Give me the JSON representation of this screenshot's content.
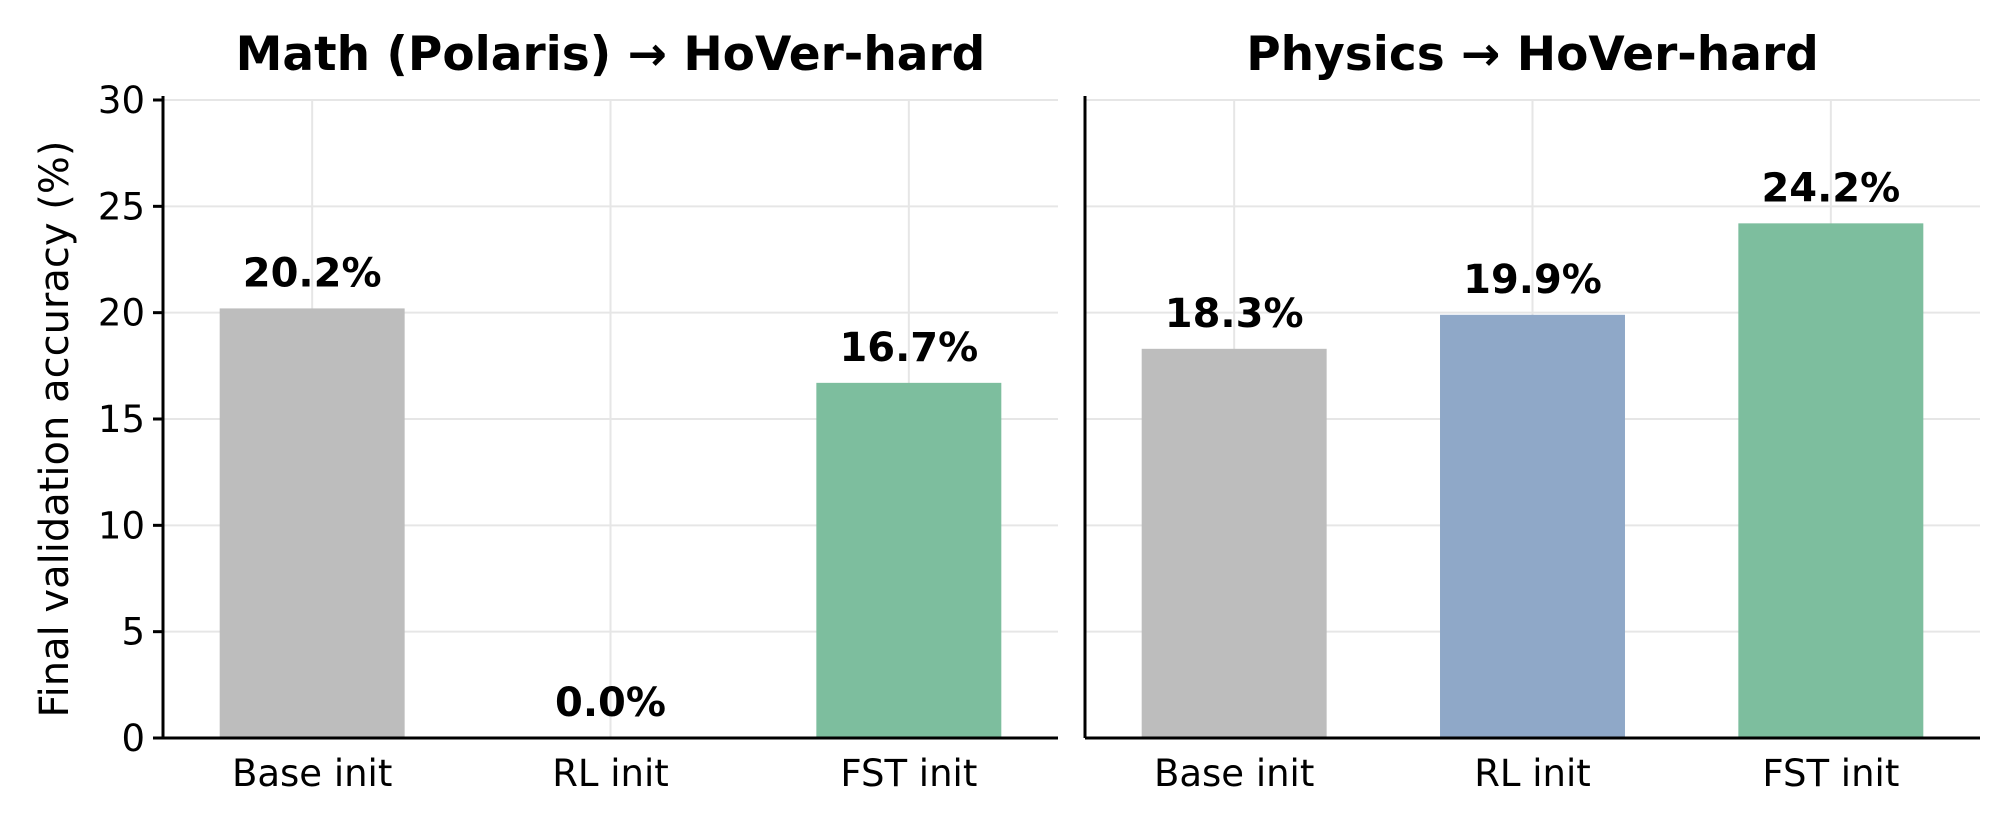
{
  "chart_data": [
    {
      "type": "bar",
      "title": "Math (Polaris) → HoVer-hard",
      "categories": [
        "Base init",
        "RL init",
        "FST init"
      ],
      "values": [
        20.2,
        0.0,
        16.7
      ],
      "value_labels": [
        "20.2%",
        "0.0%",
        "16.7%"
      ],
      "colors": [
        "#bdbdbd",
        "#8fa8c8",
        "#7dbe9e"
      ],
      "ylabel": "Final validation accuracy (%)",
      "ylim": [
        0,
        30
      ],
      "yticks": [
        0,
        5,
        10,
        15,
        20,
        25,
        30
      ],
      "grid": true
    },
    {
      "type": "bar",
      "title": "Physics → HoVer-hard",
      "categories": [
        "Base init",
        "RL init",
        "FST init"
      ],
      "values": [
        18.3,
        19.9,
        24.2
      ],
      "value_labels": [
        "18.3%",
        "19.9%",
        "24.2%"
      ],
      "colors": [
        "#bdbdbd",
        "#8fa8c8",
        "#7dbe9e"
      ],
      "ylabel": "",
      "ylim": [
        0,
        30
      ],
      "yticks": [
        0,
        5,
        10,
        15,
        20,
        25,
        30
      ],
      "grid": true
    }
  ]
}
